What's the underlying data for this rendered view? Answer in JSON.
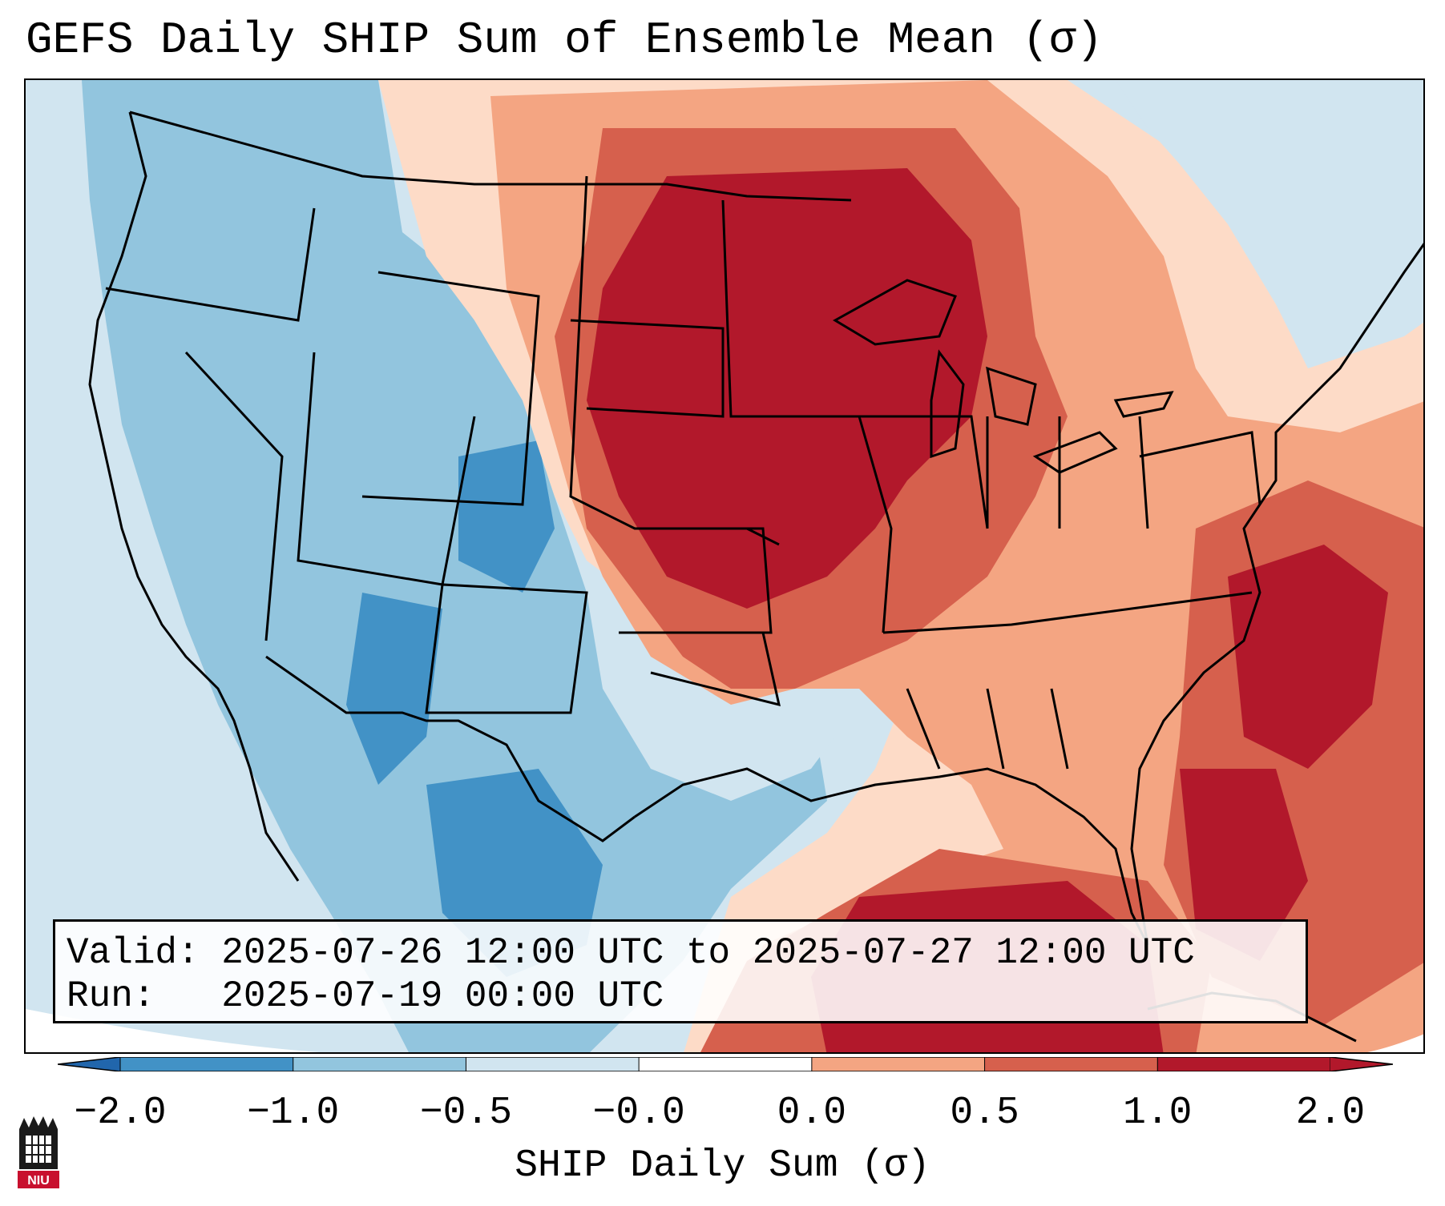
{
  "title": "GEFS Daily SHIP Sum of Ensemble Mean (σ)",
  "info": {
    "valid_label": "Valid:",
    "valid_value": "2025-07-26 12:00 UTC to 2025-07-27 12:00 UTC",
    "run_label": "Run:",
    "run_value": "2025-07-19 00:00 UTC"
  },
  "colorbar": {
    "label": "SHIP Daily Sum (σ)",
    "ticks": [
      "−2.0",
      "−1.0",
      "−0.5",
      "−0.0",
      "0.0",
      "0.5",
      "1.0",
      "2.0"
    ],
    "colors": [
      "#4292c6",
      "#92c5de",
      "#d1e5f0",
      "#f7f7f7",
      "#fddbc7",
      "#f4a582",
      "#d6604d",
      "#b2182b"
    ],
    "extend_low_color": "#2166ac",
    "extend_high_color": "#b2182b"
  },
  "logo": {
    "text": "NIU",
    "name": "Northern Illinois University"
  }
}
